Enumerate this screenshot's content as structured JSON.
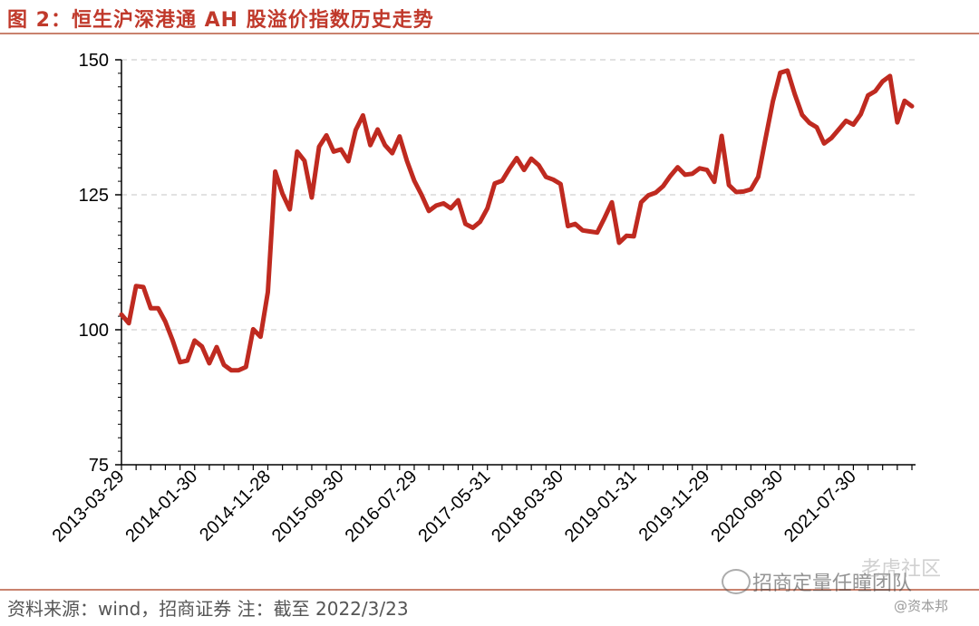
{
  "figure": {
    "title": "图 2：恒生沪深港通 AH 股溢价指数历史走势",
    "source": "资料来源：wind，招商证券  注：截至 2022/3/23"
  },
  "watermarks": {
    "brand": "招商定量任瞳团队",
    "community": "老虎社区",
    "user": "@资本邦"
  },
  "colors": {
    "line": "#bf2a20",
    "title": "#c0392b",
    "grid": "#d0d0d0"
  },
  "chart_data": {
    "type": "line",
    "title": "",
    "xlabel": "",
    "ylabel": "",
    "ylim": [
      75,
      150
    ],
    "yticks": [
      75,
      100,
      125,
      150
    ],
    "grid": "horizontal dashed",
    "x_tick_labels": [
      "2013-03-29",
      "2014-01-30",
      "2014-11-28",
      "2015-09-30",
      "2016-07-29",
      "2017-05-31",
      "2018-03-30",
      "2019-01-31",
      "2019-11-29",
      "2020-09-30",
      "2021-07-30"
    ],
    "series": [
      {
        "values": [
          102.8,
          101.2,
          108.1,
          107.9,
          104.0,
          104.0,
          101.5,
          98.0,
          94.0,
          94.3,
          98.0,
          96.9,
          93.8,
          96.8,
          93.5,
          92.5,
          92.5,
          93.1,
          100.1,
          98.7,
          107.0,
          129.3,
          125.2,
          122.3,
          133.0,
          131.3,
          124.5,
          133.9,
          136.0,
          133.0,
          133.4,
          131.2,
          137.0,
          139.7,
          134.2,
          137.1,
          134.2,
          132.7,
          135.8,
          131.3,
          127.6,
          125.0,
          122.0,
          123.0,
          123.4,
          122.5,
          124.0,
          119.6,
          118.9,
          120.0,
          122.5,
          127.1,
          127.6,
          129.8,
          131.8,
          129.6,
          131.7,
          130.5,
          128.3,
          127.8,
          127.0,
          119.2,
          119.6,
          118.4,
          118.2,
          118.0,
          120.7,
          123.6,
          116.1,
          117.4,
          117.3,
          123.6,
          124.9,
          125.4,
          126.6,
          128.5,
          130.1,
          128.7,
          128.9,
          129.9,
          129.6,
          127.4,
          135.9,
          126.8,
          125.5,
          125.6,
          126.0,
          128.3,
          135.4,
          142.3,
          147.6,
          148.0,
          143.6,
          139.8,
          138.3,
          137.5,
          134.5,
          135.5,
          137.1,
          138.7,
          138.0,
          139.9,
          143.4,
          144.2,
          146.0,
          147.0,
          138.4,
          142.4,
          141.4
        ]
      }
    ]
  }
}
